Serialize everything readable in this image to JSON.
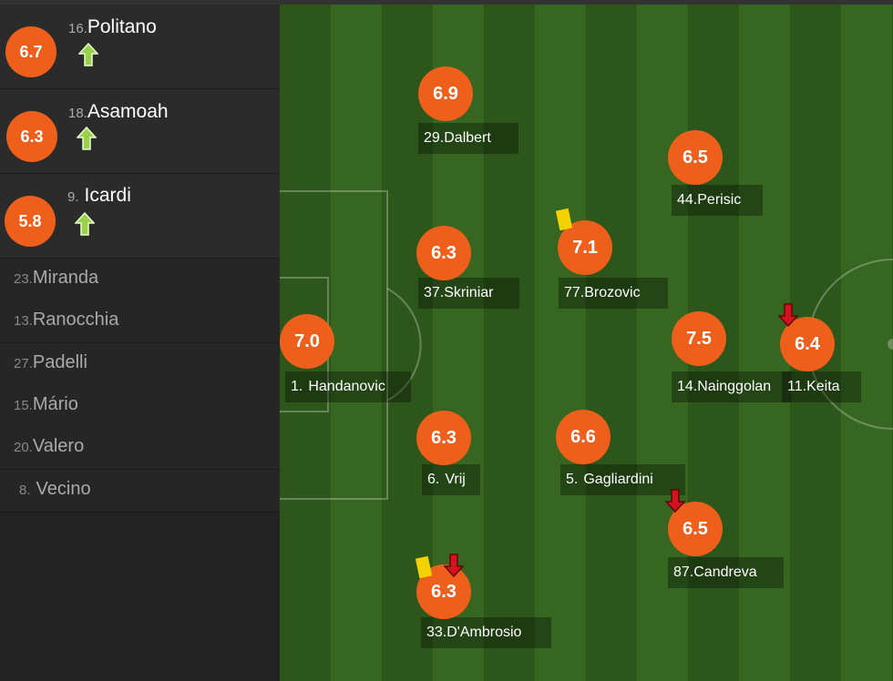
{
  "substitutes": [
    {
      "rating": "6.7",
      "number": "16.",
      "name": "Politano"
    },
    {
      "rating": "6.3",
      "number": "18.",
      "name": "Asamoah"
    },
    {
      "rating": "5.8",
      "number": "9.",
      "name": "Icardi"
    }
  ],
  "bench": [
    {
      "number": "23.",
      "name": "Miranda"
    },
    {
      "number": "13.",
      "name": "Ranocchia"
    },
    {
      "number": "27.",
      "name": "Padelli"
    },
    {
      "number": "15.",
      "name": "Mário"
    },
    {
      "number": "20.",
      "name": "Valero"
    },
    {
      "number": "8.",
      "name": "Vecino"
    }
  ],
  "pitch": [
    {
      "rating": "6.9",
      "number": "29.",
      "name": "Dalbert"
    },
    {
      "rating": "6.5",
      "number": "44.",
      "name": "Perisic"
    },
    {
      "rating": "6.3",
      "number": "37.",
      "name": "Skriniar"
    },
    {
      "rating": "7.1",
      "number": "77.",
      "name": "Brozovic"
    },
    {
      "rating": "7.0",
      "number": "1.",
      "name": "Handanovic"
    },
    {
      "rating": "7.5",
      "number": "14.",
      "name": "Nainggolan"
    },
    {
      "rating": "6.4",
      "number": "11.",
      "name": "Keita"
    },
    {
      "rating": "6.3",
      "number": "6.",
      "name": "Vrij"
    },
    {
      "rating": "6.6",
      "number": "5.",
      "name": "Gagliardini"
    },
    {
      "rating": "6.5",
      "number": "87.",
      "name": "Candreva"
    },
    {
      "rating": "6.3",
      "number": "33.",
      "name": "D'Ambrosio"
    }
  ]
}
